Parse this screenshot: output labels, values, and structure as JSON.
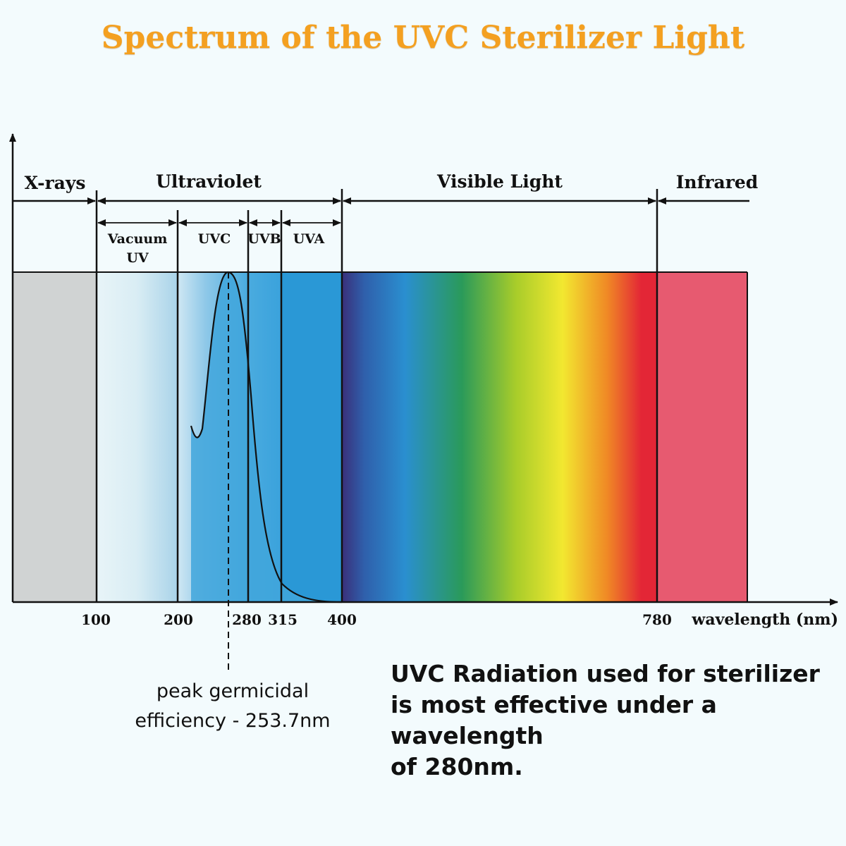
{
  "title": "Spectrum of the UVC Sterilizer Light",
  "regions": {
    "xrays": "X-rays",
    "ultraviolet": "Ultraviolet",
    "visible": "Visible Light",
    "infrared": "Infrared"
  },
  "subregions": {
    "vacuum_uv_line1": "Vacuum",
    "vacuum_uv_line2": "UV",
    "uvc": "UVC",
    "uvb": "UVB",
    "uva": "UVA"
  },
  "axis": {
    "x_label": "wavelength (nm)",
    "ticks": [
      "100",
      "200",
      "280",
      "315",
      "400",
      "780"
    ]
  },
  "peak_note": {
    "line1": "peak germicidal",
    "line2": "efficiency - 253.7nm"
  },
  "uvc_note": {
    "line1": "UVC Radiation used for sterilizer",
    "line2": "is most effective under a wavelength",
    "line3": "of 280nm."
  },
  "colors": {
    "title": "#f4a020",
    "xrays_band": "#d0d3d3",
    "uv_band": "#2a98d6",
    "infrared_band": "#e75a70",
    "visible_spectrum": [
      "#3a2f7a",
      "#2a8fd0",
      "#2a9a5a",
      "#a7cc2a",
      "#f2e830",
      "#f08a25",
      "#e32636"
    ]
  }
}
